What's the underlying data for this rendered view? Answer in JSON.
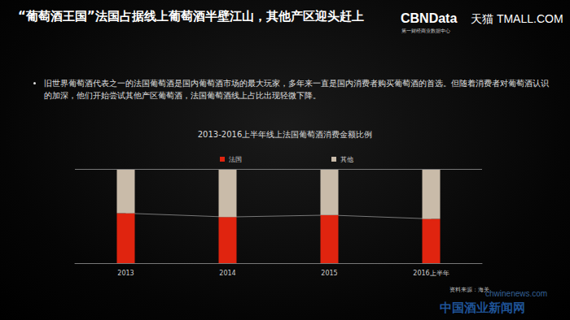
{
  "page": {
    "title": "“葡萄酒王国”法国占据线上葡萄酒半壁江山，其他产区迎头赶上",
    "logo": "CBNData",
    "logo_subtitle": "第一财经商业数据中心",
    "logo2": "天猫 TMALL.COM",
    "bullet": "旧世界葡萄酒代表之一的法国葡萄酒是国内葡萄酒市场的最大玩家，多年来一直是国内消费者购买葡萄酒的首选。但随着消费者对葡萄酒认识的加深，他们开始尝试其他产区葡萄酒，法国葡萄酒线上占比出现轻微下降。",
    "source": "资料来源：海关",
    "watermark": [
      "chwinenews.com",
      "中国酒业新闻网"
    ]
  },
  "chart_data": {
    "type": "bar",
    "title": "2013-2016上半年线上法国葡萄酒消费金额比例",
    "categories": [
      "2013",
      "2014",
      "2015",
      "2016上半年"
    ],
    "series": [
      {
        "name": "法国",
        "color": "#e0240f",
        "values": [
          53,
          49,
          51,
          47
        ]
      },
      {
        "name": "其他",
        "color": "#c9bba9",
        "values": [
          47,
          51,
          49,
          53
        ]
      }
    ],
    "stacked": true,
    "ylim": [
      0,
      100
    ],
    "tick_labels": "x",
    "legend": "top"
  }
}
